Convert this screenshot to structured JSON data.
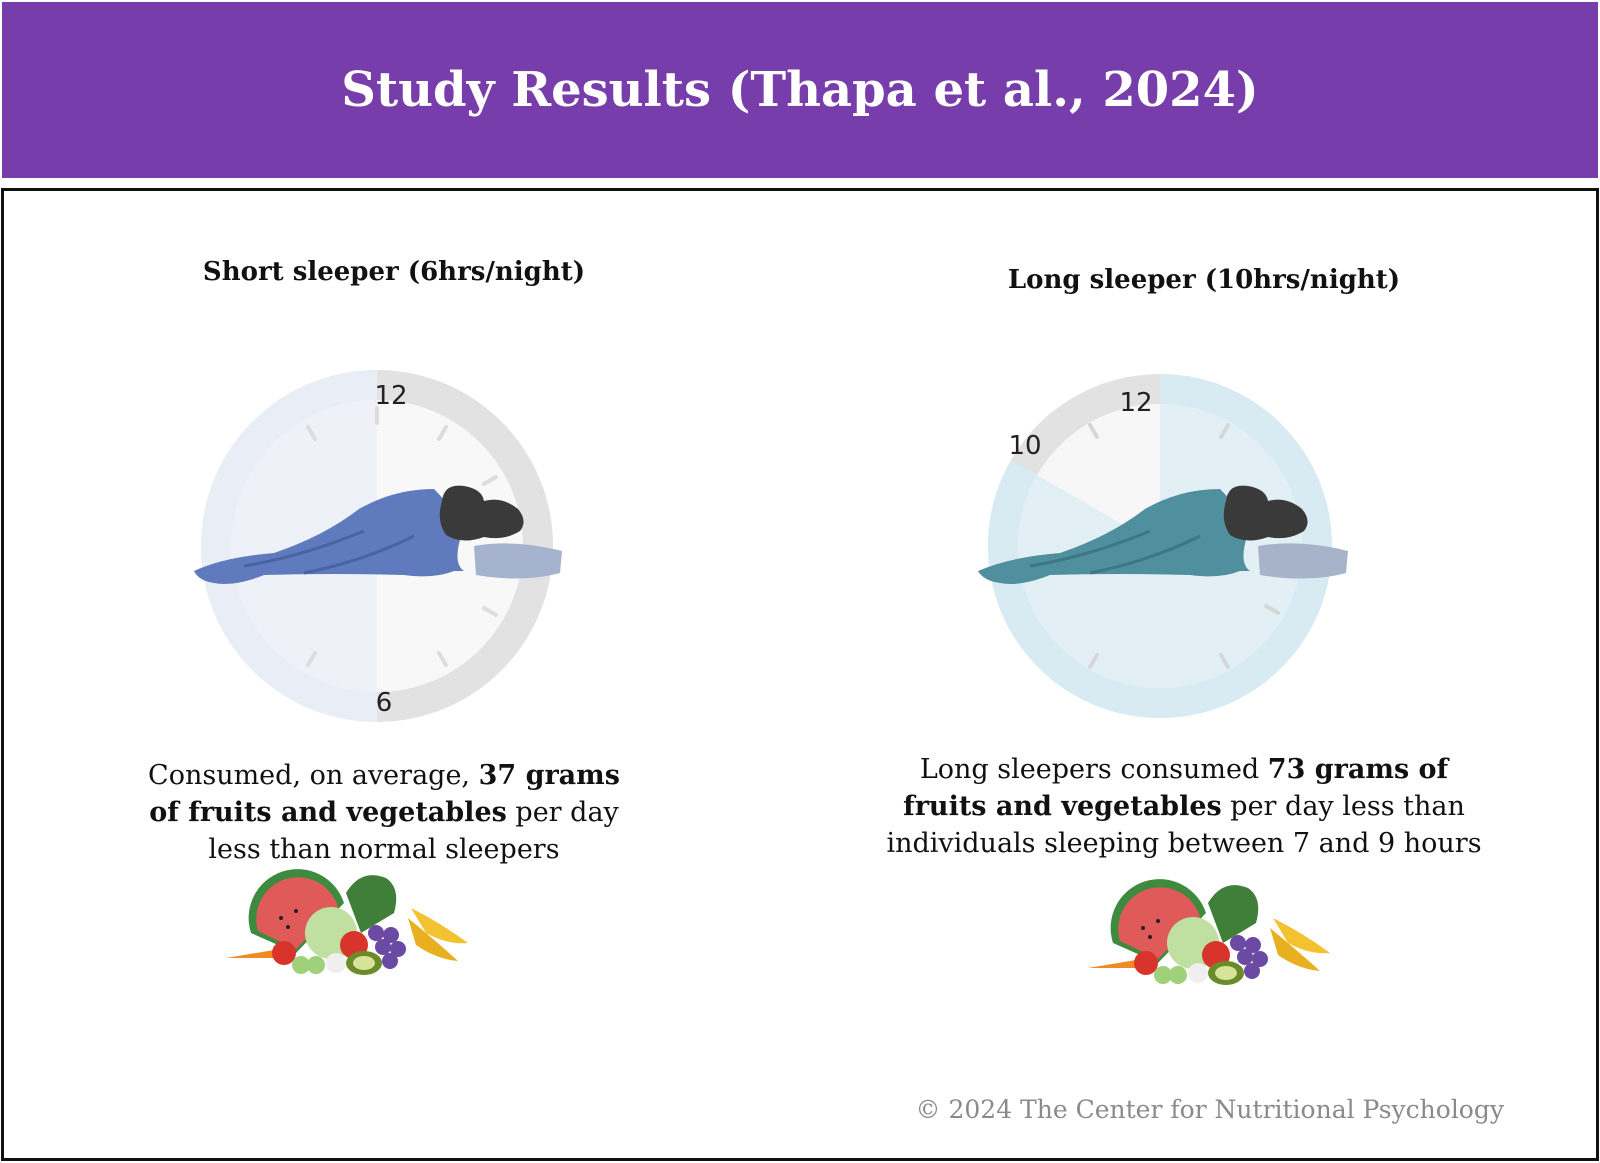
{
  "header": {
    "title": "Study Results (Thapa et al., 2024)"
  },
  "left": {
    "title": "Short sleeper (6hrs/night)",
    "clock_labels": {
      "top": "12",
      "bottom": "6"
    },
    "sleep_hours": 6,
    "desc": {
      "pre": "Consumed, on average, ",
      "bold": "37 grams of fruits and vegetables",
      "post": " per day less than normal sleepers"
    }
  },
  "right": {
    "title": "Long sleeper (10hrs/night)",
    "clock_labels": {
      "top": "12",
      "ten": "10"
    },
    "sleep_hours": 10,
    "desc": {
      "pre": "Long sleepers consumed ",
      "bold": "73 grams of fruits and vegetables",
      "post": " per day less than individuals sleeping between 7 and 9 hours"
    }
  },
  "footer": {
    "copyright": "© 2024 The Center for Nutritional Psychology"
  },
  "colors": {
    "header_bg": "#763dab",
    "blanket_short": "#5f7bbd",
    "blanket_long": "#4f8f9e",
    "clock_fill_short": "#e8edf6",
    "clock_fill_long": "#d9ecf3"
  },
  "icons": [
    "alarm-clock-icon",
    "sleeping-person-icon",
    "fruits-vegetables-icon"
  ]
}
